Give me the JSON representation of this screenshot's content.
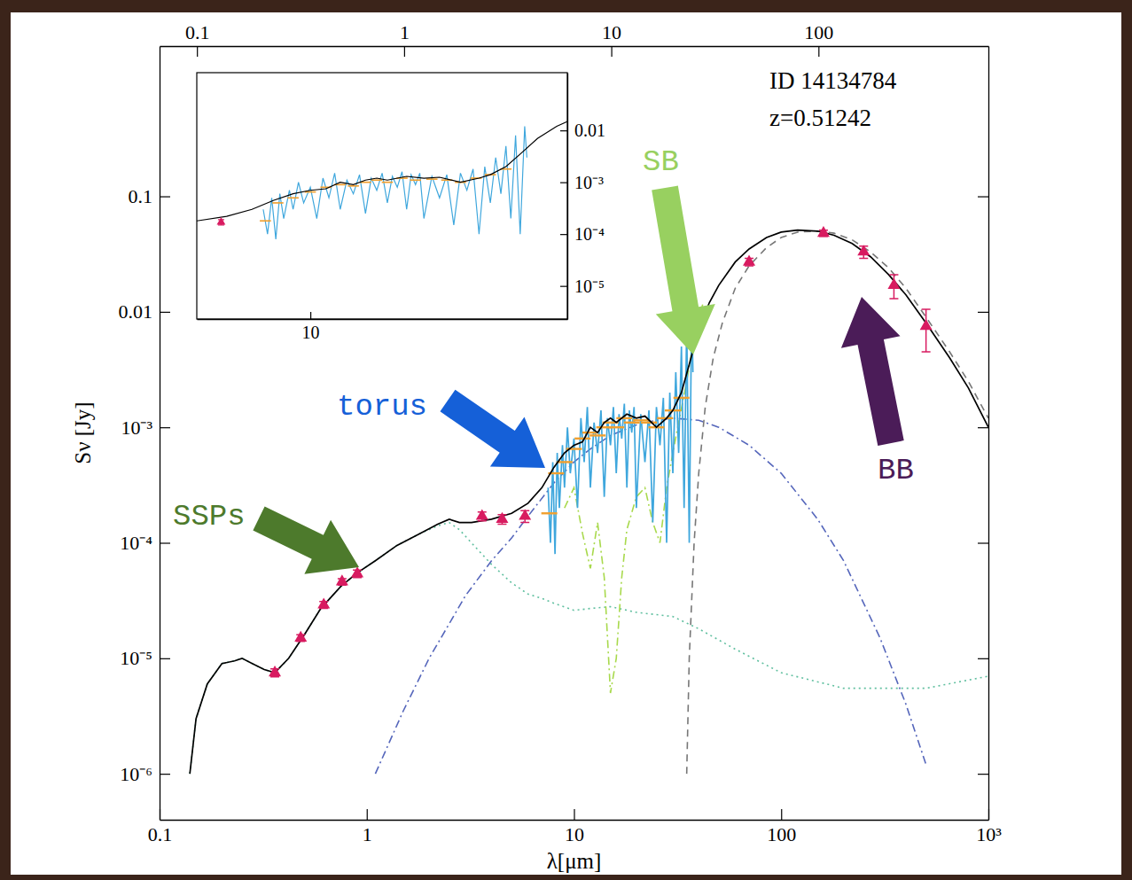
{
  "chart_data": {
    "type": "line",
    "log": true,
    "x_label": "λ[μm]",
    "y_label": "Sν [Jy]",
    "xlim": [
      0.1,
      1000
    ],
    "xticks": [
      0.1,
      1,
      10,
      100,
      {
        "value": 1000,
        "label": "10³"
      }
    ],
    "x2lim": [
      0.066,
      661
    ],
    "x2ticks": [
      0.1,
      1,
      10,
      100
    ],
    "ylim": [
      4e-07,
      2
    ],
    "yticks": [
      {
        "value": 1e-06,
        "label": "10⁻⁶"
      },
      {
        "value": 1e-05,
        "label": "10⁻⁵"
      },
      {
        "value": 0.0001,
        "label": "10⁻⁴"
      },
      {
        "value": 0.001,
        "label": "10⁻³"
      },
      0.01,
      0.1
    ],
    "annotations": [
      {
        "text": "ID 14134784"
      },
      {
        "text": "z=0.51242"
      },
      {
        "text": "SSPs",
        "color": "#4d7a2c"
      },
      {
        "text": "torus",
        "color": "#1560d8"
      },
      {
        "text": "SB",
        "color": "#98d060"
      },
      {
        "text": "BB",
        "color": "#4b1c58"
      }
    ],
    "series": [
      {
        "type": "line",
        "color": "#5fbf9f",
        "line_style": "dotted",
        "x": [
          0.14,
          0.15,
          0.17,
          0.2,
          0.23,
          0.25,
          0.28,
          0.32,
          0.36,
          0.42,
          0.5,
          0.6,
          0.75,
          0.9,
          1.1,
          1.4,
          1.8,
          2.2,
          2.5,
          2.8,
          3.2,
          4,
          5,
          6,
          7,
          8,
          10,
          12,
          15,
          20,
          30,
          40,
          60,
          100,
          200,
          500,
          1000
        ],
        "values": [
          1e-06,
          3e-06,
          6e-06,
          9e-06,
          9.5e-06,
          1e-05,
          9e-06,
          8e-06,
          7.5e-06,
          1e-05,
          1.6e-05,
          2.7e-05,
          4.2e-05,
          5.5e-05,
          7e-05,
          9.5e-05,
          0.00012,
          0.00014,
          0.00015,
          0.00013,
          0.0001,
          6.5e-05,
          4.5e-05,
          3.6e-05,
          3.3e-05,
          3e-05,
          2.6e-05,
          2.7e-05,
          2.8e-05,
          2.5e-05,
          2.3e-05,
          1.8e-05,
          1.2e-05,
          7.5e-06,
          5.5e-06,
          5.5e-06,
          7e-06
        ]
      },
      {
        "type": "line",
        "color": "#5566bb",
        "line_style": "dashdot",
        "x": [
          1.1,
          1.5,
          2,
          3,
          4,
          5,
          6,
          8,
          10,
          12,
          15,
          20,
          25,
          30,
          40,
          50,
          70,
          100,
          150,
          200,
          300,
          400,
          500
        ],
        "values": [
          1e-06,
          3.5e-06,
          1e-05,
          3.5e-05,
          7e-05,
          0.00011,
          0.00017,
          0.00033,
          0.0005,
          0.00065,
          0.00085,
          0.00105,
          0.00115,
          0.0012,
          0.00115,
          0.001,
          0.0007,
          0.0004,
          0.00016,
          7e-05,
          1.5e-05,
          4e-06,
          1.2e-06
        ]
      },
      {
        "type": "line",
        "color": "#a8d94c",
        "line_style": "dashdot",
        "x": [
          9,
          10,
          11,
          12,
          13,
          14,
          15,
          16,
          17,
          18,
          20,
          22,
          24,
          26,
          28,
          30,
          32,
          35,
          38,
          42
        ],
        "values": [
          0.0002,
          0.0003,
          0.00012,
          6e-05,
          0.00015,
          5e-05,
          5e-06,
          1e-05,
          5e-05,
          0.00013,
          0.00025,
          0.0003,
          0.00015,
          0.0001,
          0.0003,
          0.0006,
          0.0011,
          0.0025,
          0.006,
          0.012
        ]
      },
      {
        "type": "line",
        "color": "#777777",
        "line_style": "dashed",
        "x": [
          35,
          36,
          38,
          40,
          43,
          47,
          52,
          60,
          70,
          85,
          100,
          120,
          150,
          180,
          220,
          270,
          330,
          400,
          500,
          650,
          800,
          1000
        ],
        "values": [
          1e-06,
          1e-05,
          0.0001,
          0.0004,
          0.0015,
          0.004,
          0.008,
          0.016,
          0.025,
          0.036,
          0.044,
          0.049,
          0.05,
          0.048,
          0.042,
          0.033,
          0.024,
          0.016,
          0.009,
          0.0045,
          0.0025,
          0.0012
        ]
      },
      {
        "type": "line",
        "color": "#3fa7dd",
        "line_style": "solid",
        "x": [
          7.5,
          7.7,
          7.9,
          8.1,
          8.3,
          8.5,
          8.8,
          9.0,
          9.3,
          9.6,
          10,
          10.4,
          10.8,
          11.2,
          11.6,
          12,
          12.5,
          13,
          13.5,
          14,
          14.5,
          15,
          15.5,
          16,
          16.5,
          17,
          17.5,
          18,
          18.5,
          19,
          19.5,
          20,
          21,
          22,
          23,
          24,
          25,
          26,
          27,
          28,
          29,
          30,
          31,
          32,
          33,
          34,
          35,
          36,
          37,
          37.5
        ],
        "values": [
          0.0003,
          0.0001,
          0.0005,
          8e-05,
          0.0006,
          0.0002,
          0.0007,
          0.0003,
          0.001,
          0.0004,
          0.0008,
          0.0002,
          0.0012,
          0.0005,
          0.0015,
          0.0003,
          0.0011,
          0.0006,
          0.0014,
          0.00025,
          0.0012,
          0.0007,
          0.0015,
          0.0004,
          0.0013,
          0.0008,
          0.0016,
          0.0003,
          0.0014,
          0.0009,
          0.0015,
          0.0002,
          0.0013,
          0.0005,
          0.0014,
          0.00015,
          0.0015,
          0.0007,
          0.0018,
          0.0001,
          0.002,
          0.0004,
          0.003,
          0.0006,
          0.005,
          0.0002,
          0.008,
          0.0001,
          0.012,
          0.003
        ]
      },
      {
        "type": "scatter",
        "color": "#f0a030",
        "marker": "dash",
        "x": [
          7.6,
          8.2,
          9,
          10,
          11,
          12,
          13,
          14,
          15,
          16,
          17.5,
          19,
          21,
          23,
          25,
          27.5,
          30,
          33
        ],
        "values": [
          0.00018,
          0.0004,
          0.0005,
          0.00065,
          0.0008,
          0.0009,
          0.00085,
          0.001,
          0.0011,
          0.001,
          0.0012,
          0.0011,
          0.00115,
          0.0011,
          0.001,
          0.0012,
          0.0014,
          0.0018
        ]
      },
      {
        "type": "line",
        "color": "#000000",
        "line_style": "solid",
        "x": [
          0.14,
          0.15,
          0.17,
          0.2,
          0.23,
          0.25,
          0.28,
          0.32,
          0.36,
          0.42,
          0.5,
          0.6,
          0.75,
          0.9,
          1.1,
          1.4,
          1.8,
          2.2,
          2.5,
          2.8,
          3.2,
          4,
          5,
          6,
          7,
          8,
          9,
          10,
          11,
          12,
          13,
          14,
          15,
          16,
          18,
          20,
          22,
          25,
          28,
          30,
          33,
          36,
          40,
          45,
          50,
          60,
          70,
          85,
          100,
          120,
          150,
          180,
          220,
          270,
          330,
          400,
          500,
          650,
          800,
          1000
        ],
        "values": [
          1e-06,
          3e-06,
          6e-06,
          9e-06,
          9.5e-06,
          1e-05,
          9e-06,
          8e-06,
          7.5e-06,
          1e-05,
          1.6e-05,
          2.7e-05,
          4.2e-05,
          5.5e-05,
          7e-05,
          9.5e-05,
          0.00012,
          0.000145,
          0.00016,
          0.00015,
          0.00015,
          0.00016,
          0.00018,
          0.00022,
          0.0003,
          0.00045,
          0.0006,
          0.0007,
          0.00075,
          0.001,
          0.0009,
          0.0011,
          0.0012,
          0.0011,
          0.0013,
          0.0012,
          0.00125,
          0.001,
          0.0012,
          0.0014,
          0.002,
          0.0035,
          0.007,
          0.012,
          0.017,
          0.027,
          0.035,
          0.044,
          0.049,
          0.051,
          0.05,
          0.046,
          0.039,
          0.03,
          0.021,
          0.014,
          0.008,
          0.004,
          0.0022,
          0.001
        ]
      },
      {
        "type": "scatter",
        "color": "#d81b60",
        "marker": "triangle",
        "x": [
          0.36,
          0.48,
          0.62,
          0.76,
          0.9,
          3.6,
          4.5,
          5.8,
          70,
          160,
          250,
          350,
          500
        ],
        "values": [
          7.5e-06,
          1.5e-05,
          2.9e-05,
          4.6e-05,
          5.4e-05,
          0.00017,
          0.00016,
          0.00017,
          0.027,
          0.048,
          0.033,
          0.017,
          0.0075
        ],
        "errors": [
          6e-07,
          1e-06,
          2e-06,
          3e-06,
          4e-06,
          1.5e-05,
          1.5e-05,
          2e-05,
          0.002,
          0.003,
          0.004,
          0.004,
          0.003
        ]
      }
    ],
    "inset": {
      "xlim": [
        5,
        48
      ],
      "ylim": [
        2.3e-06,
        0.13
      ],
      "xticks": [
        10
      ],
      "yticks": [
        0.01,
        {
          "value": 0.001,
          "label": "10⁻³"
        },
        {
          "value": 0.0001,
          "label": "10⁻⁴"
        },
        {
          "value": 1e-05,
          "label": "10⁻⁵"
        }
      ]
    }
  }
}
